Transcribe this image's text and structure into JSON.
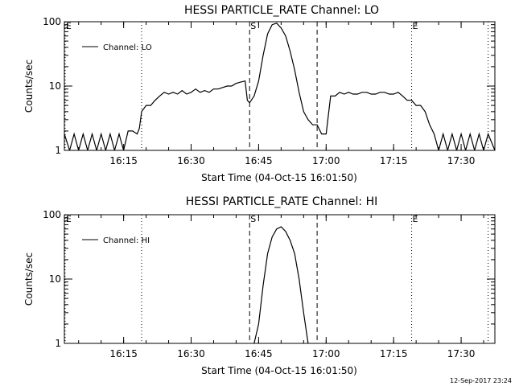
{
  "footer": "12-Sep-2017 23:24",
  "chart_data": [
    {
      "type": "line",
      "title": "HESSI PARTICLE_RATE Channel: LO",
      "xlabel": "Start Time (04-Oct-15 16:01:50)",
      "ylabel": "Counts/sec",
      "yscale": "log",
      "ylim": [
        1,
        100
      ],
      "xlim": [
        "16:01:50",
        "17:37:30"
      ],
      "x_ticks": [
        "16:15",
        "16:30",
        "16:45",
        "17:00",
        "17:15",
        "17:30"
      ],
      "y_ticks": [
        "1",
        "10",
        "100"
      ],
      "legend": {
        "position": "top-left",
        "label": "Channel: LO"
      },
      "markers": [
        {
          "time": "16:02",
          "label": "E",
          "style": "dotted"
        },
        {
          "time": "16:19",
          "label": "",
          "style": "dotted"
        },
        {
          "time": "16:43",
          "label": "S",
          "style": "dashed"
        },
        {
          "time": "16:58",
          "label": "",
          "style": "dashed"
        },
        {
          "time": "17:19",
          "label": "E",
          "style": "dotted"
        },
        {
          "time": "17:36",
          "label": "",
          "style": "dotted"
        }
      ],
      "series": [
        {
          "name": "Channel: LO",
          "x": [
            "16:01:50",
            "16:03",
            "16:04",
            "16:05",
            "16:06",
            "16:07",
            "16:08",
            "16:09",
            "16:10",
            "16:11",
            "16:12",
            "16:13",
            "16:14",
            "16:15",
            "16:16",
            "16:17",
            "16:18",
            "16:18:30",
            "16:19",
            "16:20",
            "16:21",
            "16:22",
            "16:23",
            "16:24",
            "16:25",
            "16:26",
            "16:27",
            "16:28",
            "16:29",
            "16:30",
            "16:31",
            "16:32",
            "16:33",
            "16:34",
            "16:35",
            "16:36",
            "16:37",
            "16:38",
            "16:39",
            "16:40",
            "16:41",
            "16:42",
            "16:42:30",
            "16:43",
            "16:44",
            "16:45",
            "16:46",
            "16:47",
            "16:48",
            "16:49",
            "16:50",
            "16:51",
            "16:52",
            "16:53",
            "16:54",
            "16:55",
            "16:56",
            "16:57",
            "16:58",
            "16:59",
            "17:00",
            "17:01",
            "17:02",
            "17:03",
            "17:04",
            "17:05",
            "17:06",
            "17:07",
            "17:08",
            "17:09",
            "17:10",
            "17:11",
            "17:12",
            "17:13",
            "17:14",
            "17:15",
            "17:16",
            "17:17",
            "17:18",
            "17:19",
            "17:20",
            "17:21",
            "17:22",
            "17:23",
            "17:24",
            "17:25",
            "17:26",
            "17:27",
            "17:28",
            "17:29",
            "17:30",
            "17:31",
            "17:32",
            "17:33",
            "17:34",
            "17:35",
            "17:36",
            "17:37:30"
          ],
          "y": [
            1.8,
            1.0,
            1.8,
            1.0,
            1.8,
            1.0,
            1.8,
            1.0,
            1.8,
            1.0,
            1.8,
            1.0,
            1.8,
            1.0,
            2.0,
            2.0,
            1.8,
            2.2,
            4.0,
            5.0,
            5.0,
            6.0,
            7.0,
            8.0,
            7.5,
            8.0,
            7.5,
            8.5,
            7.5,
            8.0,
            9.0,
            8.0,
            8.5,
            8.0,
            9.0,
            9.0,
            9.5,
            10.0,
            10.0,
            11.0,
            11.5,
            12.0,
            6.0,
            5.5,
            7.0,
            12.0,
            30.0,
            65.0,
            90.0,
            95.0,
            80.0,
            60.0,
            35.0,
            18.0,
            8.0,
            4.0,
            3.0,
            2.5,
            2.5,
            1.8,
            1.8,
            7.0,
            7.0,
            8.0,
            7.5,
            8.0,
            7.5,
            7.5,
            8.0,
            8.0,
            7.5,
            7.5,
            8.0,
            8.0,
            7.5,
            7.5,
            8.0,
            7.0,
            6.0,
            6.0,
            5.0,
            5.0,
            4.0,
            2.5,
            1.8,
            1.0,
            1.8,
            1.0,
            1.8,
            1.0,
            1.8,
            1.0,
            1.8,
            1.0,
            1.8,
            1.0,
            1.8,
            1.0
          ]
        }
      ]
    },
    {
      "type": "line",
      "title": "HESSI PARTICLE_RATE Channel: HI",
      "xlabel": "Start Time (04-Oct-15 16:01:50)",
      "ylabel": "Counts/sec",
      "yscale": "log",
      "ylim": [
        1,
        100
      ],
      "xlim": [
        "16:01:50",
        "17:37:30"
      ],
      "x_ticks": [
        "16:15",
        "16:30",
        "16:45",
        "17:00",
        "17:15",
        "17:30"
      ],
      "y_ticks": [
        "1",
        "10",
        "100"
      ],
      "legend": {
        "position": "top-left",
        "label": "Channel: HI"
      },
      "markers": [
        {
          "time": "16:02",
          "label": "E",
          "style": "dotted"
        },
        {
          "time": "16:19",
          "label": "",
          "style": "dotted"
        },
        {
          "time": "16:43",
          "label": "S",
          "style": "dashed"
        },
        {
          "time": "16:58",
          "label": "",
          "style": "dashed"
        },
        {
          "time": "17:19",
          "label": "E",
          "style": "dotted"
        },
        {
          "time": "17:36",
          "label": "",
          "style": "dotted"
        }
      ],
      "series": [
        {
          "name": "Channel: HI",
          "x": [
            "16:44",
            "16:45",
            "16:46",
            "16:47",
            "16:48",
            "16:49",
            "16:50",
            "16:51",
            "16:52",
            "16:53",
            "16:54",
            "16:55",
            "16:56"
          ],
          "y": [
            1.0,
            2.0,
            8.0,
            25.0,
            45.0,
            60.0,
            65.0,
            55.0,
            40.0,
            25.0,
            10.0,
            3.0,
            1.0
          ]
        }
      ]
    }
  ]
}
